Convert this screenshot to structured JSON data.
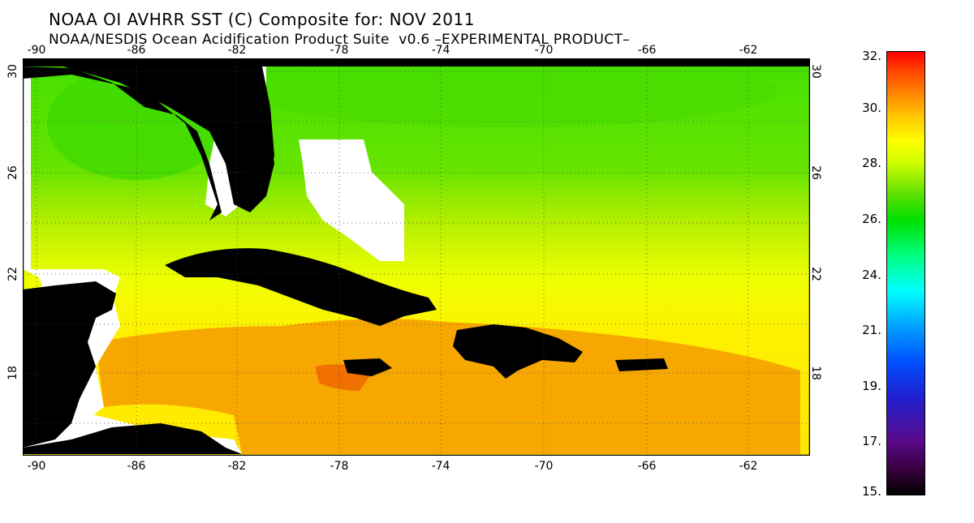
{
  "header": {
    "title": "NOAA OI AVHRR SST (C) Composite for: NOV 2011",
    "subtitle": "NOAA/NESDIS Ocean Acidification Product Suite  v0.6 –EXPERIMENTAL PRODUCT–"
  },
  "map": {
    "x_ticks": [
      "-90",
      "-86",
      "-82",
      "-78",
      "-74",
      "-70",
      "-66",
      "-62"
    ],
    "y_ticks": [
      "30",
      "26",
      "22",
      "18"
    ],
    "land_color": "#000000",
    "no_data_color": "#ffffff"
  },
  "colorbar": {
    "labels": [
      "32.",
      "30.",
      "28.",
      "26.",
      "24.",
      "21.",
      "19.",
      "17.",
      "15."
    ],
    "colors": [
      "#ff0000",
      "#ff8000",
      "#ffff00",
      "#00e000",
      "#00ff80",
      "#00ffff",
      "#0050ff",
      "#5a0a8a",
      "#000000"
    ]
  }
}
